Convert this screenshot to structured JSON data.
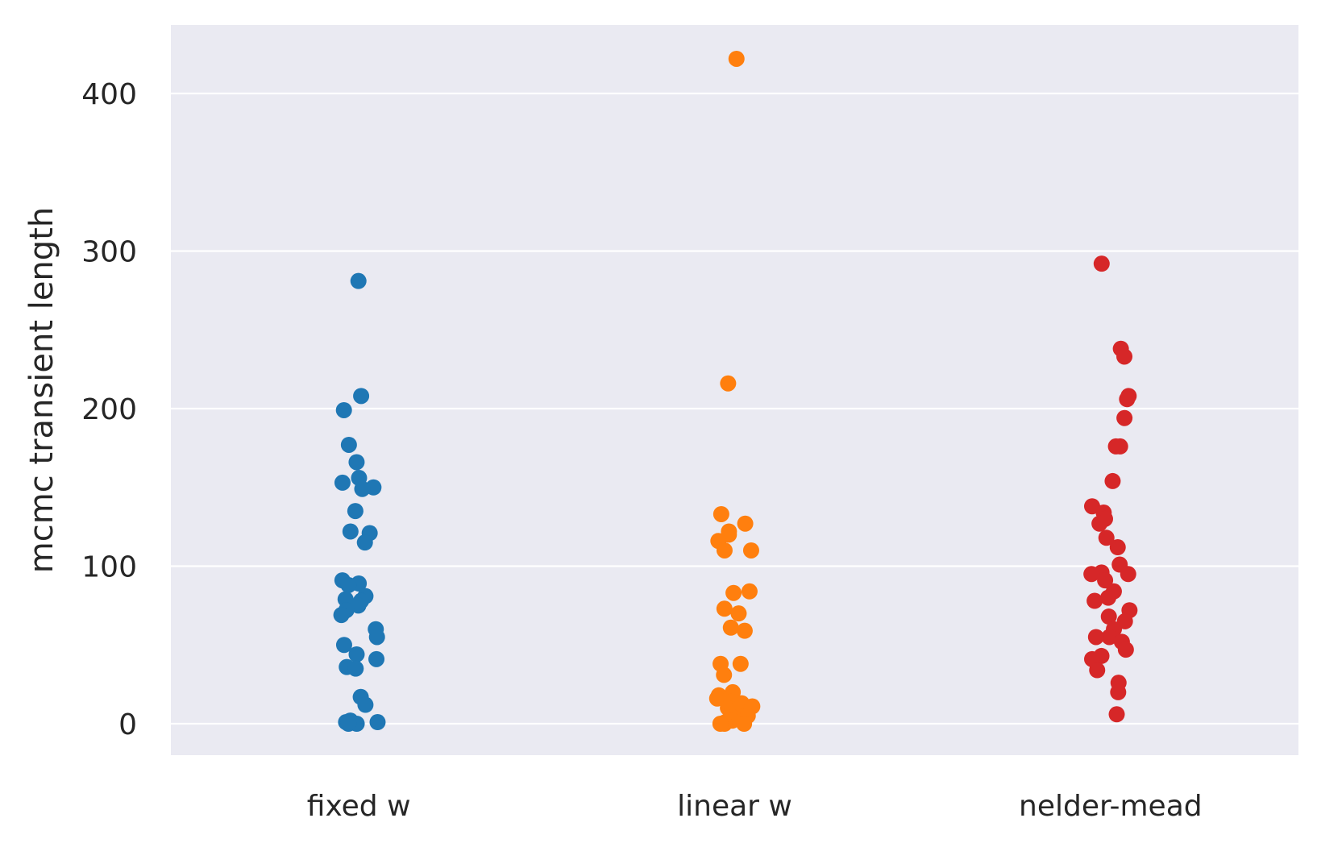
{
  "chart_data": {
    "type": "scatter",
    "subtype": "strip",
    "title": "",
    "xlabel": "",
    "ylabel": "mcmc transient length",
    "ylim": [
      -20,
      445
    ],
    "yticks": [
      0,
      100,
      200,
      300,
      400
    ],
    "grid": true,
    "background": "#eaeaf2",
    "grid_color": "#ffffff",
    "categories": [
      "fixed w",
      "linear w",
      "nelder-mead"
    ],
    "series": [
      {
        "category": "fixed w",
        "color": "#1f77b4",
        "values": [
          281,
          208,
          199,
          177,
          166,
          156,
          153,
          150,
          149,
          135,
          122,
          121,
          115,
          91,
          89,
          88,
          81,
          79,
          78,
          75,
          72,
          69,
          60,
          55,
          50,
          44,
          41,
          36,
          35,
          17,
          12,
          2,
          1,
          1,
          0,
          0
        ]
      },
      {
        "category": "linear w",
        "color": "#ff7f0e",
        "values": [
          422,
          216,
          133,
          127,
          122,
          120,
          116,
          110,
          110,
          84,
          83,
          73,
          70,
          61,
          59,
          38,
          38,
          31,
          20,
          18,
          16,
          14,
          13,
          12,
          11,
          10,
          9,
          8,
          6,
          5,
          4,
          2,
          1,
          0,
          0,
          0
        ]
      },
      {
        "category": "nelder-mead",
        "color": "#d62728",
        "values": [
          292,
          238,
          233,
          208,
          206,
          194,
          176,
          176,
          154,
          138,
          134,
          130,
          127,
          118,
          112,
          101,
          96,
          95,
          95,
          91,
          84,
          80,
          78,
          72,
          68,
          65,
          60,
          55,
          55,
          52,
          47,
          43,
          41,
          34,
          26,
          20,
          6
        ]
      }
    ]
  }
}
